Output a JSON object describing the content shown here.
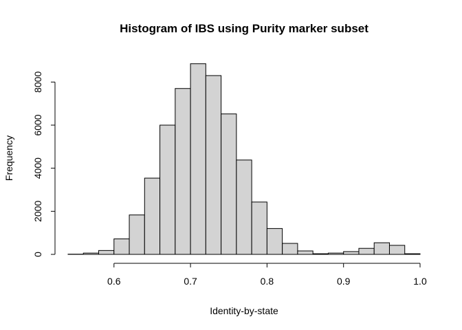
{
  "chart_data": {
    "type": "bar",
    "title": "Histogram of IBS using Purity marker subset",
    "xlabel": "Identity-by-state",
    "ylabel": "Frequency",
    "bin_width": 0.02,
    "bins": [
      {
        "x0": 0.54,
        "x1": 0.56,
        "value": 10
      },
      {
        "x0": 0.56,
        "x1": 0.58,
        "value": 60
      },
      {
        "x0": 0.58,
        "x1": 0.6,
        "value": 180
      },
      {
        "x0": 0.6,
        "x1": 0.62,
        "value": 720
      },
      {
        "x0": 0.62,
        "x1": 0.64,
        "value": 1830
      },
      {
        "x0": 0.64,
        "x1": 0.66,
        "value": 3540
      },
      {
        "x0": 0.66,
        "x1": 0.68,
        "value": 6000
      },
      {
        "x0": 0.68,
        "x1": 0.7,
        "value": 7700
      },
      {
        "x0": 0.7,
        "x1": 0.72,
        "value": 8850
      },
      {
        "x0": 0.72,
        "x1": 0.74,
        "value": 8300
      },
      {
        "x0": 0.74,
        "x1": 0.76,
        "value": 6520
      },
      {
        "x0": 0.76,
        "x1": 0.78,
        "value": 4380
      },
      {
        "x0": 0.78,
        "x1": 0.8,
        "value": 2430
      },
      {
        "x0": 0.8,
        "x1": 0.82,
        "value": 1200
      },
      {
        "x0": 0.82,
        "x1": 0.84,
        "value": 510
      },
      {
        "x0": 0.84,
        "x1": 0.86,
        "value": 160
      },
      {
        "x0": 0.86,
        "x1": 0.88,
        "value": 30
      },
      {
        "x0": 0.88,
        "x1": 0.9,
        "value": 60
      },
      {
        "x0": 0.9,
        "x1": 0.92,
        "value": 130
      },
      {
        "x0": 0.92,
        "x1": 0.94,
        "value": 280
      },
      {
        "x0": 0.94,
        "x1": 0.96,
        "value": 540
      },
      {
        "x0": 0.96,
        "x1": 0.98,
        "value": 420
      },
      {
        "x0": 0.98,
        "x1": 1.0,
        "value": 30
      }
    ],
    "xlim": [
      0.54,
      1.0
    ],
    "ylim": [
      0,
      9000
    ],
    "x_ticks": [
      {
        "value": 0.6,
        "label": "0.6"
      },
      {
        "value": 0.7,
        "label": "0.7"
      },
      {
        "value": 0.8,
        "label": "0.8"
      },
      {
        "value": 0.9,
        "label": "0.9"
      },
      {
        "value": 1.0,
        "label": "1.0"
      }
    ],
    "y_ticks": [
      {
        "value": 0,
        "label": "0"
      },
      {
        "value": 2000,
        "label": "2000"
      },
      {
        "value": 4000,
        "label": "4000"
      },
      {
        "value": 6000,
        "label": "6000"
      },
      {
        "value": 8000,
        "label": "8000"
      }
    ],
    "grid": false,
    "bar_fill": "#d3d3d3",
    "bar_stroke": "#000000"
  }
}
